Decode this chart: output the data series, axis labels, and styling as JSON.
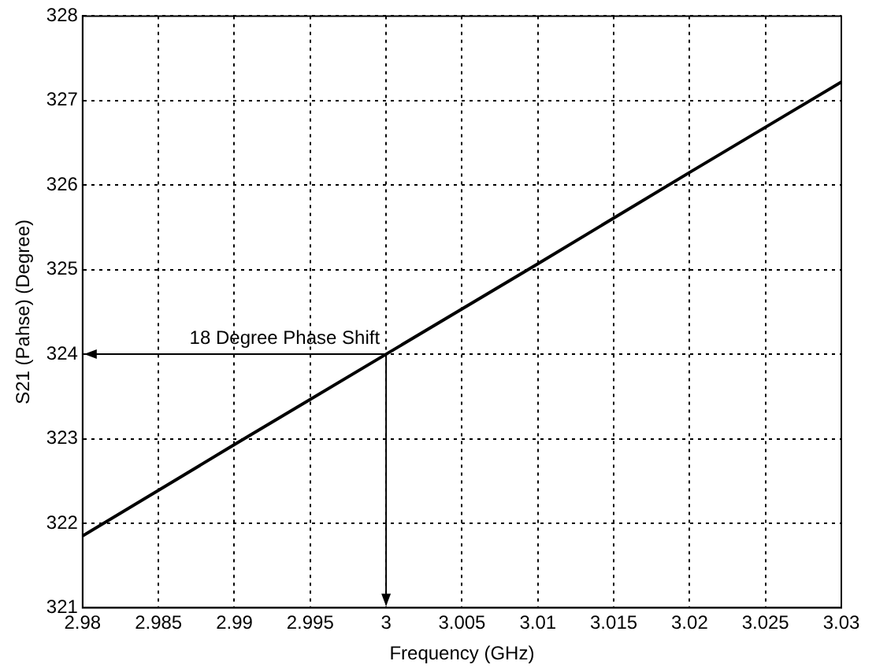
{
  "chart_data": {
    "type": "line",
    "xlabel": "Frequency (GHz)",
    "ylabel": "S21 (Pahse) (Degree)",
    "x": [
      2.98,
      2.99,
      3.0,
      3.01,
      3.02,
      3.03
    ],
    "series": [
      {
        "color": "#000000",
        "values": [
          321.85,
          322.93,
          324.0,
          325.07,
          326.15,
          327.22
        ]
      }
    ],
    "xlim": [
      2.98,
      3.03
    ],
    "xticks": [
      2.98,
      2.985,
      2.99,
      2.995,
      3,
      3.005,
      3.01,
      3.015,
      3.02,
      3.025,
      3.03
    ],
    "ylim": [
      321,
      328
    ],
    "yticks": [
      321,
      322,
      323,
      324,
      325,
      326,
      327,
      328
    ],
    "grid": true,
    "legend": false,
    "marker": "none",
    "line_style": "solid",
    "annotations": [
      {
        "text": "18 Degree Phase Shift",
        "x": 3,
        "y": 324
      }
    ]
  }
}
